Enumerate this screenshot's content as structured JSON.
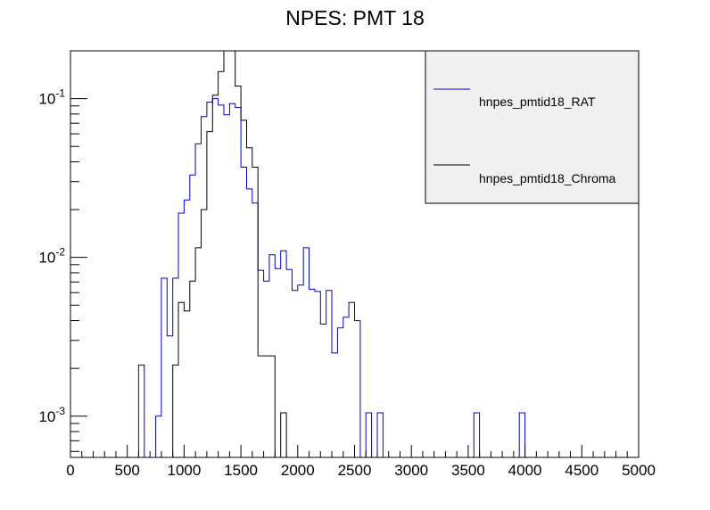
{
  "chart_data": {
    "type": "line",
    "title": "NPES: PMT 18",
    "xlabel": "",
    "ylabel": "",
    "xlim": [
      0,
      5000
    ],
    "yscale": "log",
    "ylim": [
      0.00055,
      0.2
    ],
    "grid": false,
    "legend_placement": "top-right",
    "bin_width": 50,
    "x_ticks": [
      0,
      500,
      1000,
      1500,
      2000,
      2500,
      3000,
      3500,
      4000,
      4500,
      5000
    ],
    "x_tick_labels": [
      "0",
      "500",
      "1000",
      "1500",
      "2000",
      "2500",
      "3000",
      "3500",
      "4000",
      "4500",
      "5000"
    ],
    "y_ticks": [
      {
        "value": 0.1,
        "base": "10",
        "exp": "-1"
      },
      {
        "value": 0.01,
        "base": "10",
        "exp": "-2"
      },
      {
        "value": 0.001,
        "base": "10",
        "exp": "-3"
      }
    ],
    "series": [
      {
        "name": "hnpes_pmtid18_RAT",
        "color": "#0000cc",
        "bins": [
          [
            600,
            0.0021
          ],
          [
            650,
            0
          ],
          [
            700,
            0
          ],
          [
            750,
            0.001
          ],
          [
            800,
            0.0074
          ],
          [
            850,
            0.0032
          ],
          [
            900,
            0.0074
          ],
          [
            950,
            0.019
          ],
          [
            1000,
            0.023
          ],
          [
            1050,
            0.033
          ],
          [
            1100,
            0.052
          ],
          [
            1150,
            0.077
          ],
          [
            1200,
            0.095
          ],
          [
            1250,
            0.1
          ],
          [
            1300,
            0.091
          ],
          [
            1350,
            0.079
          ],
          [
            1400,
            0.093
          ],
          [
            1450,
            0.088
          ],
          [
            1500,
            0.037
          ],
          [
            1550,
            0.027
          ],
          [
            1600,
            0.022
          ],
          [
            1650,
            0.0083
          ],
          [
            1700,
            0.0071
          ],
          [
            1750,
            0.0104
          ],
          [
            1800,
            0.0085
          ],
          [
            1850,
            0.011
          ],
          [
            1900,
            0.0084
          ],
          [
            1950,
            0.0062
          ],
          [
            2000,
            0.0067
          ],
          [
            2050,
            0.0115
          ],
          [
            2100,
            0.0063
          ],
          [
            2150,
            0.0061
          ],
          [
            2200,
            0.0038
          ],
          [
            2250,
            0.0062
          ],
          [
            2300,
            0.0025
          ],
          [
            2350,
            0.0036
          ],
          [
            2400,
            0.0042
          ],
          [
            2450,
            0.0052
          ],
          [
            2500,
            0.004
          ],
          [
            2550,
            0
          ],
          [
            2600,
            0.00105
          ],
          [
            2650,
            0
          ],
          [
            2700,
            0.00105
          ],
          [
            2750,
            0
          ],
          [
            2800,
            0
          ],
          [
            2850,
            0
          ],
          [
            2900,
            0
          ],
          [
            2950,
            0
          ],
          [
            3000,
            0
          ],
          [
            3050,
            0
          ],
          [
            3100,
            0
          ],
          [
            3150,
            0
          ],
          [
            3200,
            0
          ],
          [
            3250,
            0
          ],
          [
            3300,
            0
          ],
          [
            3350,
            0
          ],
          [
            3400,
            0
          ],
          [
            3450,
            0
          ],
          [
            3500,
            0
          ],
          [
            3550,
            0.00105
          ],
          [
            3600,
            0
          ],
          [
            3650,
            0
          ],
          [
            3700,
            0
          ],
          [
            3750,
            0
          ],
          [
            3800,
            0
          ],
          [
            3850,
            0
          ],
          [
            3900,
            0
          ],
          [
            3950,
            0.00105
          ],
          [
            4000,
            0
          ]
        ]
      },
      {
        "name": "hnpes_pmtid18_Chroma",
        "color": "#000000",
        "bins": [
          [
            900,
            0.0021
          ],
          [
            950,
            0.0052
          ],
          [
            1000,
            0.0046
          ],
          [
            1050,
            0.0071
          ],
          [
            1100,
            0.0115
          ],
          [
            1150,
            0.02
          ],
          [
            1200,
            0.062
          ],
          [
            1250,
            0.105
          ],
          [
            1300,
            0.148
          ],
          [
            1350,
            0.245
          ],
          [
            1400,
            0.25
          ],
          [
            1450,
            0.12
          ],
          [
            1500,
            0.073
          ],
          [
            1550,
            0.049
          ],
          [
            1600,
            0.037
          ],
          [
            1650,
            0.0024
          ],
          [
            1700,
            0.0024
          ],
          [
            1750,
            0.0024
          ],
          [
            1800,
            0
          ],
          [
            1850,
            0.00105
          ]
        ]
      }
    ]
  }
}
